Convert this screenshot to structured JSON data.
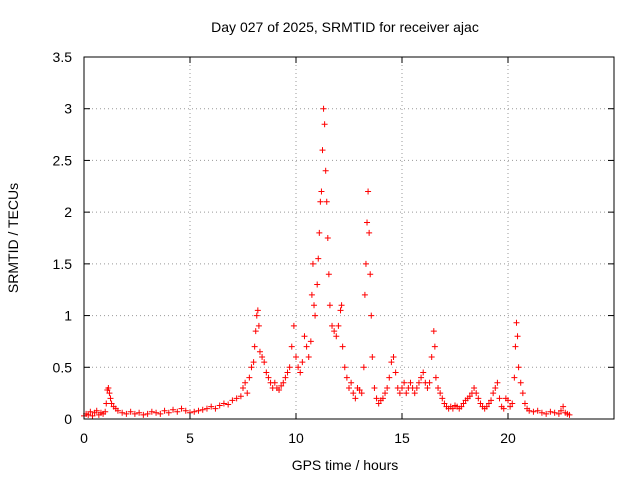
{
  "chart_data": {
    "type": "scatter",
    "title": "Day 027 of 2025, SRMTID for receiver ajac",
    "xlabel": "GPS time / hours",
    "ylabel": "SRMTID / TECUs",
    "xlim": [
      0,
      25
    ],
    "ylim": [
      0,
      3.5
    ],
    "grid": true,
    "marker": "+",
    "x_ticks": [
      0,
      5,
      10,
      15,
      20
    ],
    "x_tick_labels": [
      "0",
      "5",
      "10",
      "15",
      "20"
    ],
    "y_ticks": [
      0,
      0.5,
      1,
      1.5,
      2,
      2.5,
      3,
      3.5
    ],
    "y_tick_labels": [
      "0",
      "0.5",
      "1",
      "1.5",
      "2",
      "2.5",
      "3",
      "3.5"
    ],
    "series": [
      {
        "name": "SRMTID",
        "color": "#ff0000",
        "points": [
          [
            0.0,
            0.03
          ],
          [
            0.1,
            0.05
          ],
          [
            0.2,
            0.04
          ],
          [
            0.3,
            0.07
          ],
          [
            0.4,
            0.03
          ],
          [
            0.5,
            0.06
          ],
          [
            0.6,
            0.08
          ],
          [
            0.7,
            0.04
          ],
          [
            0.8,
            0.06
          ],
          [
            0.9,
            0.05
          ],
          [
            1.0,
            0.07
          ],
          [
            1.05,
            0.15
          ],
          [
            1.1,
            0.28
          ],
          [
            1.15,
            0.3
          ],
          [
            1.2,
            0.25
          ],
          [
            1.25,
            0.2
          ],
          [
            1.3,
            0.15
          ],
          [
            1.4,
            0.12
          ],
          [
            1.5,
            0.1
          ],
          [
            1.6,
            0.08
          ],
          [
            1.8,
            0.06
          ],
          [
            2.0,
            0.05
          ],
          [
            2.2,
            0.07
          ],
          [
            2.4,
            0.05
          ],
          [
            2.6,
            0.06
          ],
          [
            2.8,
            0.04
          ],
          [
            3.0,
            0.05
          ],
          [
            3.2,
            0.07
          ],
          [
            3.4,
            0.06
          ],
          [
            3.6,
            0.05
          ],
          [
            3.8,
            0.08
          ],
          [
            4.0,
            0.06
          ],
          [
            4.2,
            0.09
          ],
          [
            4.4,
            0.07
          ],
          [
            4.6,
            0.1
          ],
          [
            4.8,
            0.08
          ],
          [
            5.0,
            0.06
          ],
          [
            5.2,
            0.07
          ],
          [
            5.4,
            0.08
          ],
          [
            5.6,
            0.09
          ],
          [
            5.8,
            0.1
          ],
          [
            6.0,
            0.12
          ],
          [
            6.2,
            0.1
          ],
          [
            6.4,
            0.13
          ],
          [
            6.6,
            0.15
          ],
          [
            6.8,
            0.14
          ],
          [
            7.0,
            0.18
          ],
          [
            7.2,
            0.2
          ],
          [
            7.4,
            0.22
          ],
          [
            7.5,
            0.3
          ],
          [
            7.6,
            0.35
          ],
          [
            7.7,
            0.25
          ],
          [
            7.8,
            0.4
          ],
          [
            7.9,
            0.5
          ],
          [
            8.0,
            0.55
          ],
          [
            8.05,
            0.7
          ],
          [
            8.1,
            0.85
          ],
          [
            8.15,
            1.0
          ],
          [
            8.2,
            1.05
          ],
          [
            8.25,
            0.9
          ],
          [
            8.3,
            0.65
          ],
          [
            8.4,
            0.6
          ],
          [
            8.5,
            0.55
          ],
          [
            8.6,
            0.45
          ],
          [
            8.7,
            0.4
          ],
          [
            8.8,
            0.35
          ],
          [
            8.9,
            0.3
          ],
          [
            9.0,
            0.35
          ],
          [
            9.1,
            0.3
          ],
          [
            9.2,
            0.28
          ],
          [
            9.3,
            0.32
          ],
          [
            9.4,
            0.35
          ],
          [
            9.5,
            0.4
          ],
          [
            9.6,
            0.45
          ],
          [
            9.7,
            0.5
          ],
          [
            9.8,
            0.7
          ],
          [
            9.9,
            0.9
          ],
          [
            10.0,
            0.6
          ],
          [
            10.1,
            0.5
          ],
          [
            10.2,
            0.45
          ],
          [
            10.3,
            0.55
          ],
          [
            10.4,
            0.8
          ],
          [
            10.5,
            0.7
          ],
          [
            10.6,
            0.6
          ],
          [
            10.7,
            0.75
          ],
          [
            10.75,
            1.2
          ],
          [
            10.8,
            1.5
          ],
          [
            10.85,
            1.1
          ],
          [
            10.9,
            1.0
          ],
          [
            11.0,
            1.3
          ],
          [
            11.05,
            1.55
          ],
          [
            11.1,
            1.8
          ],
          [
            11.15,
            2.1
          ],
          [
            11.2,
            2.2
          ],
          [
            11.25,
            2.6
          ],
          [
            11.3,
            3.0
          ],
          [
            11.35,
            2.85
          ],
          [
            11.4,
            2.4
          ],
          [
            11.45,
            2.1
          ],
          [
            11.5,
            1.75
          ],
          [
            11.55,
            1.4
          ],
          [
            11.6,
            1.1
          ],
          [
            11.7,
            0.9
          ],
          [
            11.8,
            0.85
          ],
          [
            11.9,
            0.8
          ],
          [
            12.0,
            0.9
          ],
          [
            12.1,
            1.05
          ],
          [
            12.15,
            1.1
          ],
          [
            12.2,
            0.7
          ],
          [
            12.3,
            0.5
          ],
          [
            12.4,
            0.4
          ],
          [
            12.5,
            0.3
          ],
          [
            12.6,
            0.35
          ],
          [
            12.7,
            0.25
          ],
          [
            12.8,
            0.2
          ],
          [
            12.9,
            0.3
          ],
          [
            13.0,
            0.28
          ],
          [
            13.1,
            0.25
          ],
          [
            13.2,
            0.5
          ],
          [
            13.25,
            1.2
          ],
          [
            13.3,
            1.5
          ],
          [
            13.35,
            1.9
          ],
          [
            13.4,
            2.2
          ],
          [
            13.45,
            1.8
          ],
          [
            13.5,
            1.4
          ],
          [
            13.55,
            1.0
          ],
          [
            13.6,
            0.6
          ],
          [
            13.7,
            0.3
          ],
          [
            13.8,
            0.2
          ],
          [
            13.9,
            0.15
          ],
          [
            14.0,
            0.18
          ],
          [
            14.1,
            0.2
          ],
          [
            14.2,
            0.25
          ],
          [
            14.3,
            0.3
          ],
          [
            14.4,
            0.4
          ],
          [
            14.5,
            0.55
          ],
          [
            14.6,
            0.6
          ],
          [
            14.7,
            0.45
          ],
          [
            14.8,
            0.3
          ],
          [
            14.9,
            0.25
          ],
          [
            15.0,
            0.3
          ],
          [
            15.1,
            0.35
          ],
          [
            15.2,
            0.25
          ],
          [
            15.3,
            0.3
          ],
          [
            15.4,
            0.35
          ],
          [
            15.5,
            0.3
          ],
          [
            15.6,
            0.25
          ],
          [
            15.7,
            0.3
          ],
          [
            15.8,
            0.35
          ],
          [
            15.9,
            0.4
          ],
          [
            16.0,
            0.45
          ],
          [
            16.1,
            0.35
          ],
          [
            16.2,
            0.3
          ],
          [
            16.3,
            0.35
          ],
          [
            16.4,
            0.6
          ],
          [
            16.5,
            0.85
          ],
          [
            16.55,
            0.7
          ],
          [
            16.6,
            0.4
          ],
          [
            16.7,
            0.3
          ],
          [
            16.8,
            0.25
          ],
          [
            16.9,
            0.2
          ],
          [
            17.0,
            0.15
          ],
          [
            17.1,
            0.12
          ],
          [
            17.2,
            0.1
          ],
          [
            17.3,
            0.12
          ],
          [
            17.4,
            0.1
          ],
          [
            17.5,
            0.13
          ],
          [
            17.6,
            0.12
          ],
          [
            17.7,
            0.1
          ],
          [
            17.8,
            0.12
          ],
          [
            17.9,
            0.15
          ],
          [
            18.0,
            0.18
          ],
          [
            18.1,
            0.2
          ],
          [
            18.2,
            0.22
          ],
          [
            18.3,
            0.25
          ],
          [
            18.4,
            0.3
          ],
          [
            18.5,
            0.25
          ],
          [
            18.6,
            0.2
          ],
          [
            18.7,
            0.15
          ],
          [
            18.8,
            0.12
          ],
          [
            18.9,
            0.1
          ],
          [
            19.0,
            0.12
          ],
          [
            19.1,
            0.15
          ],
          [
            19.2,
            0.18
          ],
          [
            19.3,
            0.25
          ],
          [
            19.4,
            0.3
          ],
          [
            19.5,
            0.35
          ],
          [
            19.6,
            0.2
          ],
          [
            19.7,
            0.12
          ],
          [
            19.8,
            0.1
          ],
          [
            19.9,
            0.2
          ],
          [
            20.0,
            0.18
          ],
          [
            20.1,
            0.12
          ],
          [
            20.2,
            0.15
          ],
          [
            20.3,
            0.4
          ],
          [
            20.35,
            0.7
          ],
          [
            20.4,
            0.93
          ],
          [
            20.45,
            0.8
          ],
          [
            20.5,
            0.5
          ],
          [
            20.6,
            0.35
          ],
          [
            20.7,
            0.25
          ],
          [
            20.8,
            0.15
          ],
          [
            20.9,
            0.1
          ],
          [
            21.0,
            0.08
          ],
          [
            21.2,
            0.07
          ],
          [
            21.4,
            0.08
          ],
          [
            21.6,
            0.06
          ],
          [
            21.8,
            0.05
          ],
          [
            22.0,
            0.07
          ],
          [
            22.2,
            0.06
          ],
          [
            22.4,
            0.05
          ],
          [
            22.5,
            0.08
          ],
          [
            22.6,
            0.12
          ],
          [
            22.7,
            0.06
          ],
          [
            22.8,
            0.05
          ],
          [
            22.9,
            0.04
          ]
        ]
      }
    ]
  }
}
